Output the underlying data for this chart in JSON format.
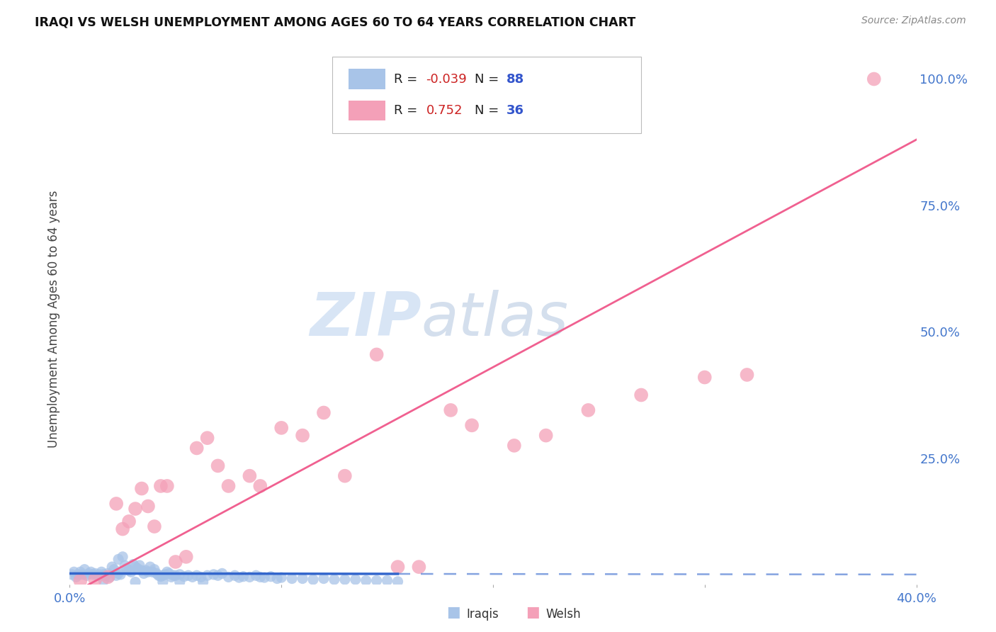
{
  "title": "IRAQI VS WELSH UNEMPLOYMENT AMONG AGES 60 TO 64 YEARS CORRELATION CHART",
  "source": "Source: ZipAtlas.com",
  "ylabel": "Unemployment Among Ages 60 to 64 years",
  "xlim": [
    0.0,
    0.4
  ],
  "ylim": [
    0.0,
    1.05
  ],
  "iraqis_R": "-0.039",
  "iraqis_N": "88",
  "welsh_R": "0.752",
  "welsh_N": "36",
  "iraqis_color": "#a8c4e8",
  "welsh_color": "#f4a0b8",
  "iraqis_line_color": "#3366cc",
  "welsh_line_color": "#f06090",
  "background_color": "#ffffff",
  "grid_color": "#d8d8e8",
  "watermark_zip": "ZIP",
  "watermark_atlas": "atlas",
  "iraqis_x": [
    0.001,
    0.002,
    0.003,
    0.004,
    0.005,
    0.006,
    0.007,
    0.008,
    0.009,
    0.01,
    0.011,
    0.012,
    0.013,
    0.014,
    0.015,
    0.016,
    0.017,
    0.018,
    0.019,
    0.02,
    0.021,
    0.022,
    0.023,
    0.024,
    0.025,
    0.026,
    0.027,
    0.028,
    0.029,
    0.03,
    0.031,
    0.032,
    0.033,
    0.034,
    0.035,
    0.036,
    0.037,
    0.038,
    0.039,
    0.04,
    0.041,
    0.042,
    0.043,
    0.044,
    0.045,
    0.046,
    0.047,
    0.048,
    0.049,
    0.05,
    0.052,
    0.054,
    0.056,
    0.058,
    0.06,
    0.062,
    0.065,
    0.068,
    0.07,
    0.072,
    0.075,
    0.078,
    0.08,
    0.082,
    0.085,
    0.088,
    0.09,
    0.092,
    0.095,
    0.098,
    0.1,
    0.105,
    0.11,
    0.115,
    0.12,
    0.125,
    0.13,
    0.135,
    0.14,
    0.145,
    0.15,
    0.155,
    0.016,
    0.023,
    0.031,
    0.044,
    0.052,
    0.063
  ],
  "iraqis_y": [
    0.02,
    0.025,
    0.015,
    0.02,
    0.025,
    0.02,
    0.03,
    0.018,
    0.022,
    0.025,
    0.02,
    0.022,
    0.018,
    0.02,
    0.025,
    0.02,
    0.018,
    0.022,
    0.015,
    0.035,
    0.03,
    0.018,
    0.022,
    0.02,
    0.055,
    0.038,
    0.032,
    0.028,
    0.025,
    0.04,
    0.035,
    0.032,
    0.038,
    0.028,
    0.022,
    0.028,
    0.025,
    0.035,
    0.025,
    0.03,
    0.022,
    0.018,
    0.016,
    0.018,
    0.02,
    0.025,
    0.022,
    0.015,
    0.018,
    0.018,
    0.02,
    0.016,
    0.018,
    0.015,
    0.018,
    0.015,
    0.018,
    0.02,
    0.018,
    0.022,
    0.015,
    0.018,
    0.014,
    0.016,
    0.015,
    0.018,
    0.015,
    0.014,
    0.016,
    0.012,
    0.014,
    0.012,
    0.012,
    0.01,
    0.012,
    0.01,
    0.01,
    0.01,
    0.008,
    0.008,
    0.008,
    0.006,
    0.008,
    0.05,
    0.005,
    0.005,
    0.005,
    0.005
  ],
  "welsh_x": [
    0.005,
    0.012,
    0.018,
    0.022,
    0.025,
    0.028,
    0.031,
    0.034,
    0.037,
    0.04,
    0.043,
    0.046,
    0.05,
    0.055,
    0.06,
    0.065,
    0.07,
    0.075,
    0.085,
    0.09,
    0.1,
    0.11,
    0.12,
    0.13,
    0.145,
    0.155,
    0.165,
    0.18,
    0.19,
    0.21,
    0.225,
    0.245,
    0.27,
    0.3,
    0.32,
    0.38
  ],
  "welsh_y": [
    0.008,
    0.01,
    0.015,
    0.16,
    0.11,
    0.125,
    0.15,
    0.19,
    0.155,
    0.115,
    0.195,
    0.195,
    0.045,
    0.055,
    0.27,
    0.29,
    0.235,
    0.195,
    0.215,
    0.195,
    0.31,
    0.295,
    0.34,
    0.215,
    0.455,
    0.035,
    0.035,
    0.345,
    0.315,
    0.275,
    0.295,
    0.345,
    0.375,
    0.41,
    0.415,
    1.0
  ],
  "welsh_line_x0": 0.0,
  "welsh_line_x1": 0.4,
  "welsh_line_y0": -0.02,
  "welsh_line_y1": 0.88,
  "iraqis_line_y_intercept": 0.022,
  "iraqis_line_slope": -0.005
}
